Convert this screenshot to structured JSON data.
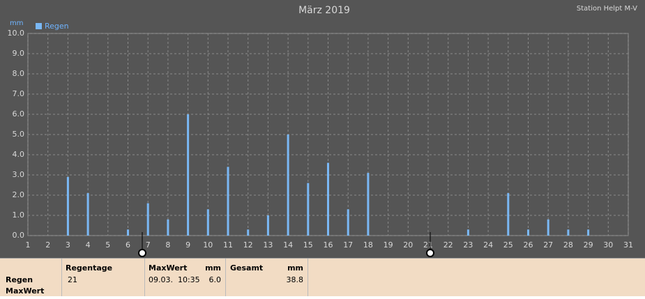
{
  "chart_data": {
    "type": "bar",
    "title": "März 2019",
    "station": "Station Helpt M-V",
    "y_unit": "mm",
    "series": [
      {
        "name": "Regen",
        "color": "#7ab8f5",
        "x": [
          3,
          4,
          6,
          7,
          8,
          9,
          10,
          11,
          12,
          13,
          14,
          15,
          16,
          17,
          18,
          23,
          25,
          26,
          27,
          28,
          29
        ],
        "values": [
          2.9,
          2.1,
          0.3,
          1.6,
          0.8,
          6.0,
          1.3,
          3.4,
          0.3,
          1.0,
          5.0,
          2.6,
          3.6,
          1.3,
          3.1,
          0.3,
          2.1,
          0.3,
          0.8,
          0.3,
          0.3
        ]
      }
    ],
    "xlim": [
      1,
      31
    ],
    "xticks": [
      1,
      2,
      3,
      4,
      5,
      6,
      7,
      8,
      9,
      10,
      11,
      12,
      13,
      14,
      15,
      16,
      17,
      18,
      19,
      20,
      21,
      22,
      23,
      24,
      25,
      26,
      27,
      28,
      29,
      30,
      31
    ],
    "ylim": [
      0,
      10
    ],
    "yticks": [
      {
        "value": 0,
        "label": "0.0"
      },
      {
        "value": 1,
        "label": "1.0"
      },
      {
        "value": 2,
        "label": "2.0"
      },
      {
        "value": 3,
        "label": "3.0"
      },
      {
        "value": 4,
        "label": "4.0"
      },
      {
        "value": 5,
        "label": "5.0"
      },
      {
        "value": 6,
        "label": "6.0"
      },
      {
        "value": 7,
        "label": "7.0"
      },
      {
        "value": 8,
        "label": "8.0"
      },
      {
        "value": 9,
        "label": "9.0"
      },
      {
        "value": 10,
        "label": "10.0"
      }
    ],
    "grid": true,
    "legend": "top-left"
  },
  "table": {
    "row_labels": [
      "Regen",
      "MaxWert"
    ],
    "regentage": {
      "header": "Regentage",
      "value": "21"
    },
    "maxwert": {
      "header": "MaxWert",
      "unit": "mm",
      "time": "09.03.  10:35",
      "value": "6.0"
    },
    "gesamt": {
      "header": "Gesamt",
      "unit": "mm",
      "value": "38.8"
    }
  }
}
